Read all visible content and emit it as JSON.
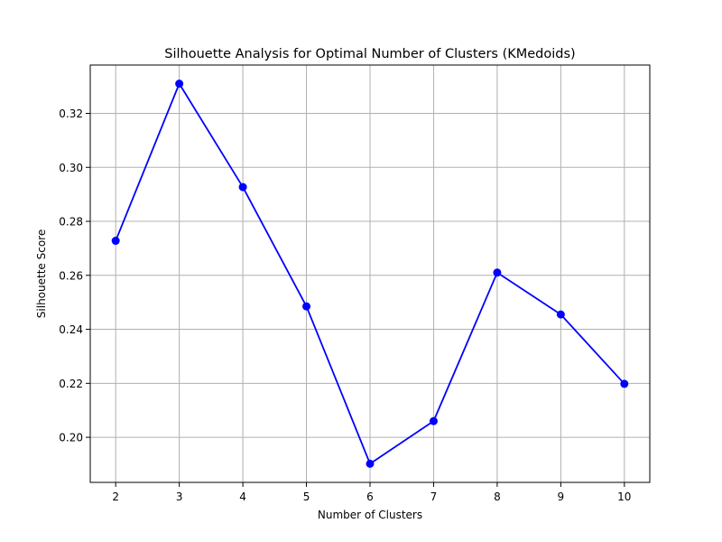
{
  "chart_data": {
    "type": "line",
    "title": "Silhouette Analysis for Optimal Number of Clusters (KMedoids)",
    "xlabel": "Number of Clusters",
    "ylabel": "Silhouette Score",
    "x": [
      2,
      3,
      4,
      5,
      6,
      7,
      8,
      9,
      10
    ],
    "series": [
      {
        "values": [
          0.2728,
          0.331,
          0.2927,
          0.2485,
          0.1902,
          0.206,
          0.261,
          0.2455,
          0.2198
        ],
        "color": "#0000ff",
        "marker": "circle"
      }
    ],
    "xlim": [
      1.6,
      10.4
    ],
    "ylim": [
      0.1833,
      0.3379
    ],
    "xticks": [
      2,
      3,
      4,
      5,
      6,
      7,
      8,
      9,
      10
    ],
    "yticks": [
      0.2,
      0.22,
      0.24,
      0.26,
      0.28,
      0.3,
      0.32
    ],
    "ytick_labels": [
      "0.20",
      "0.22",
      "0.24",
      "0.26",
      "0.28",
      "0.30",
      "0.32"
    ],
    "grid": true,
    "grid_color": "#b0b0b0",
    "legend": "none"
  }
}
